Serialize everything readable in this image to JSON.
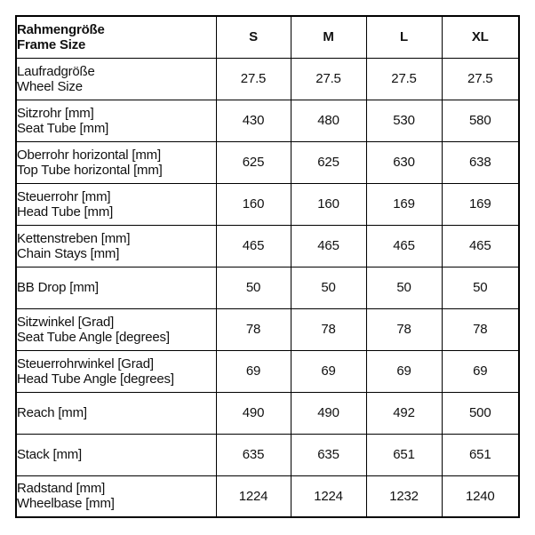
{
  "table": {
    "header": {
      "label_de": "Rahmengröße",
      "label_en": "Frame Size",
      "columns": [
        "S",
        "M",
        "L",
        "XL"
      ]
    },
    "rows": [
      {
        "label_de": "Laufradgröße",
        "label_en": "Wheel Size",
        "values": [
          "27.5",
          "27.5",
          "27.5",
          "27.5"
        ]
      },
      {
        "label_de": "Sitzrohr [mm]",
        "label_en": "Seat Tube [mm]",
        "values": [
          "430",
          "480",
          "530",
          "580"
        ]
      },
      {
        "label_de": "Oberrohr horizontal [mm]",
        "label_en": "Top Tube horizontal [mm]",
        "values": [
          "625",
          "625",
          "630",
          "638"
        ]
      },
      {
        "label_de": "Steuerrohr [mm]",
        "label_en": "Head Tube [mm]",
        "values": [
          "160",
          "160",
          "169",
          "169"
        ]
      },
      {
        "label_de": "Kettenstreben [mm]",
        "label_en": "Chain Stays [mm]",
        "values": [
          "465",
          "465",
          "465",
          "465"
        ]
      },
      {
        "label_de": "BB Drop [mm]",
        "label_en": "",
        "values": [
          "50",
          "50",
          "50",
          "50"
        ]
      },
      {
        "label_de": "Sitzwinkel [Grad]",
        "label_en": "Seat Tube Angle [degrees]",
        "values": [
          "78",
          "78",
          "78",
          "78"
        ]
      },
      {
        "label_de": "Steuerrohrwinkel [Grad]",
        "label_en": "Head Tube Angle [degrees]",
        "values": [
          "69",
          "69",
          "69",
          "69"
        ]
      },
      {
        "label_de": "Reach [mm]",
        "label_en": "",
        "values": [
          "490",
          "490",
          "492",
          "500"
        ]
      },
      {
        "label_de": "Stack [mm]",
        "label_en": "",
        "values": [
          "635",
          "635",
          "651",
          "651"
        ]
      },
      {
        "label_de": "Radstand [mm]",
        "label_en": "Wheelbase [mm]",
        "values": [
          "1224",
          "1224",
          "1232",
          "1240"
        ]
      }
    ],
    "colors": {
      "text": "#111111",
      "border": "#000000",
      "background": "#ffffff"
    }
  },
  "chart_data": {
    "type": "table",
    "title": "Rahmengröße / Frame Size",
    "columns": [
      "Rahmengröße / Frame Size",
      "S",
      "M",
      "L",
      "XL"
    ],
    "rows": [
      [
        "Laufradgröße / Wheel Size",
        "27.5",
        "27.5",
        "27.5",
        "27.5"
      ],
      [
        "Sitzrohr [mm] / Seat Tube [mm]",
        "430",
        "480",
        "530",
        "580"
      ],
      [
        "Oberrohr horizontal [mm] / Top Tube horizontal [mm]",
        "625",
        "625",
        "630",
        "638"
      ],
      [
        "Steuerrohr [mm] / Head Tube [mm]",
        "160",
        "160",
        "169",
        "169"
      ],
      [
        "Kettenstreben [mm] / Chain Stays [mm]",
        "465",
        "465",
        "465",
        "465"
      ],
      [
        "BB Drop [mm]",
        "50",
        "50",
        "50",
        "50"
      ],
      [
        "Sitzwinkel [Grad] / Seat Tube Angle [degrees]",
        "78",
        "78",
        "78",
        "78"
      ],
      [
        "Steuerrohrwinkel [Grad] / Head Tube Angle [degrees]",
        "69",
        "69",
        "69",
        "69"
      ],
      [
        "Reach [mm]",
        "490",
        "490",
        "492",
        "500"
      ],
      [
        "Stack [mm]",
        "635",
        "635",
        "651",
        "651"
      ],
      [
        "Radstand [mm] / Wheelbase [mm]",
        "1224",
        "1224",
        "1232",
        "1240"
      ]
    ]
  }
}
